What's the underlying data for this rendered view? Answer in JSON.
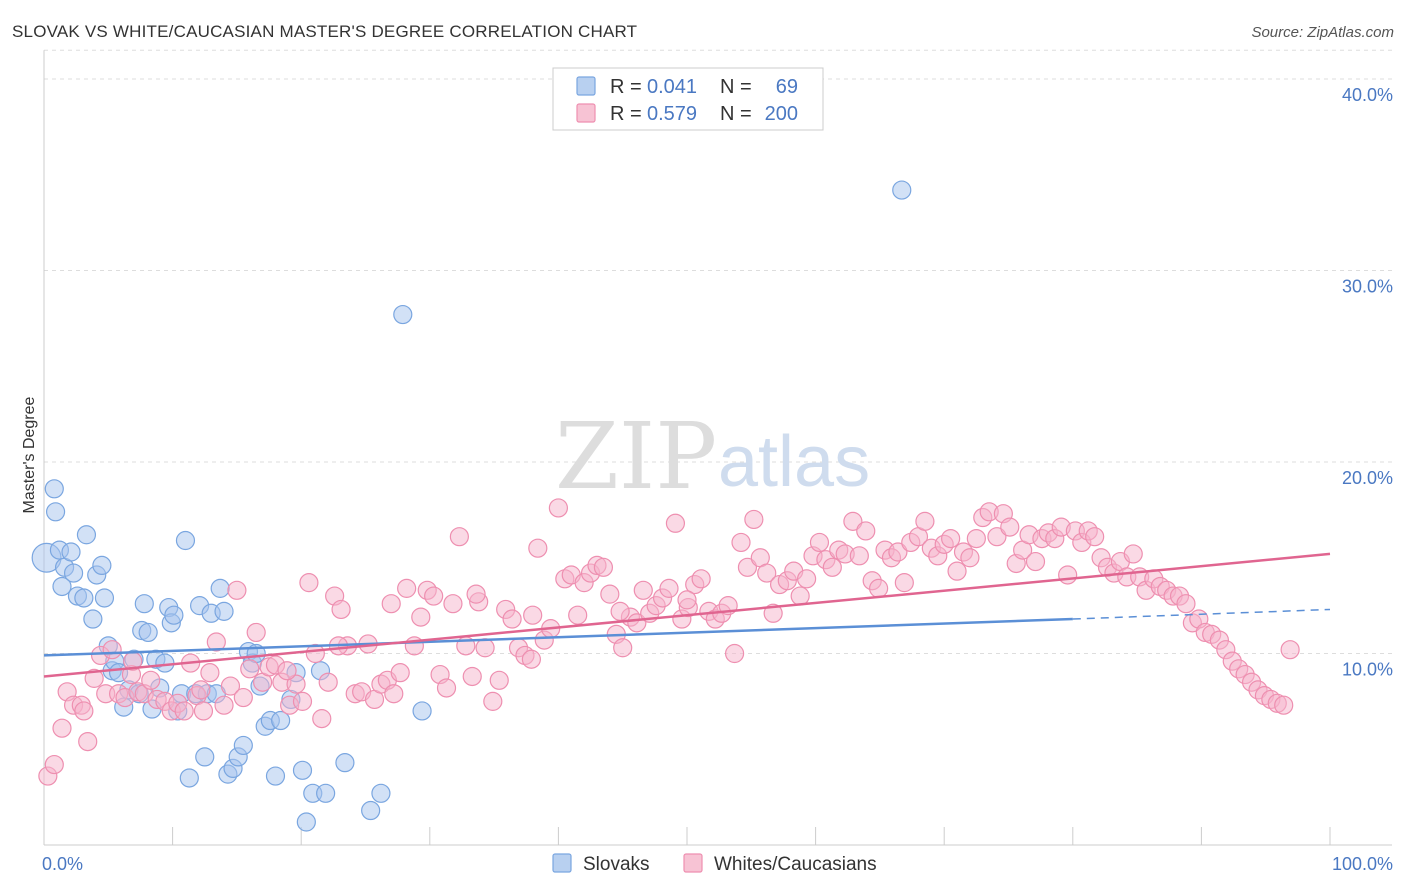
{
  "header": {
    "title": "SLOVAK VS WHITE/CAUCASIAN MASTER'S DEGREE CORRELATION CHART",
    "source": "Source: ZipAtlas.com"
  },
  "watermark": {
    "zip": "ZIP",
    "atlas": "atlas"
  },
  "legend": {
    "rows": [
      {
        "r_label": "R =",
        "r_value": "0.041",
        "n_label": "N =",
        "n_value": "69",
        "color": "#7aa6e0",
        "fill": "#b8d0f0"
      },
      {
        "r_label": "R =",
        "r_value": "0.579",
        "n_label": "N =",
        "n_value": "200",
        "color": "#ee8fb0",
        "fill": "#f7c3d4"
      }
    ]
  },
  "bottom_legend": [
    {
      "label": "Slovaks",
      "color": "#7aa6e0",
      "fill": "#b8d0f0"
    },
    {
      "label": "Whites/Caucasians",
      "color": "#ee8fb0",
      "fill": "#f7c3d4"
    }
  ],
  "chart_data": {
    "type": "scatter",
    "title": "SLOVAK VS WHITE/CAUCASIAN MASTER'S DEGREE CORRELATION CHART",
    "xlabel": "",
    "ylabel": "Master's Degree",
    "xlim": [
      0,
      100
    ],
    "ylim": [
      0,
      41.5
    ],
    "x_tick_labels": [
      "0.0%",
      "100.0%"
    ],
    "y_ticks": [
      10,
      20,
      30,
      40
    ],
    "y_tick_labels": [
      "10.0%",
      "20.0%",
      "30.0%",
      "40.0%"
    ],
    "grid": true,
    "legend_position": "top-center",
    "series": [
      {
        "name": "Slovaks",
        "color": "#5b8fd6",
        "trend": {
          "x": [
            0,
            80
          ],
          "y": [
            9.9,
            11.8
          ],
          "dashed_to": [
            100,
            12.3
          ]
        },
        "points": [
          [
            0.2,
            15.0,
            1.6
          ],
          [
            0.8,
            18.6,
            1
          ],
          [
            0.9,
            17.4,
            1
          ],
          [
            1.2,
            15.4,
            1
          ],
          [
            1.4,
            13.5,
            1
          ],
          [
            1.6,
            14.5,
            1
          ],
          [
            2.1,
            15.3,
            1
          ],
          [
            2.3,
            14.2,
            1
          ],
          [
            2.6,
            13.0,
            1
          ],
          [
            3.1,
            12.9,
            1
          ],
          [
            3.3,
            16.2,
            1
          ],
          [
            3.8,
            11.8,
            1
          ],
          [
            4.1,
            14.1,
            1
          ],
          [
            4.5,
            14.6,
            1
          ],
          [
            4.7,
            12.9,
            1
          ],
          [
            5.0,
            10.4,
            1
          ],
          [
            5.3,
            9.1,
            1
          ],
          [
            5.5,
            9.6,
            1
          ],
          [
            5.8,
            9.0,
            1
          ],
          [
            6.2,
            7.2,
            1
          ],
          [
            6.6,
            8.1,
            1
          ],
          [
            7.0,
            9.7,
            1
          ],
          [
            7.4,
            7.9,
            1
          ],
          [
            7.6,
            11.2,
            1
          ],
          [
            7.8,
            12.6,
            1
          ],
          [
            8.1,
            11.1,
            1
          ],
          [
            8.4,
            7.1,
            1
          ],
          [
            8.7,
            9.7,
            1
          ],
          [
            9.0,
            8.2,
            1
          ],
          [
            9.4,
            9.5,
            1
          ],
          [
            9.7,
            12.4,
            1
          ],
          [
            9.9,
            11.6,
            1
          ],
          [
            10.1,
            12.0,
            1
          ],
          [
            10.4,
            7.0,
            1
          ],
          [
            10.7,
            7.9,
            1
          ],
          [
            11.0,
            15.9,
            1
          ],
          [
            11.3,
            3.5,
            1
          ],
          [
            11.8,
            7.9,
            1
          ],
          [
            12.1,
            12.5,
            1
          ],
          [
            12.5,
            4.6,
            1
          ],
          [
            12.7,
            7.9,
            1
          ],
          [
            13.0,
            12.1,
            1
          ],
          [
            13.4,
            7.9,
            1
          ],
          [
            13.7,
            13.4,
            1
          ],
          [
            14.0,
            12.2,
            1
          ],
          [
            14.3,
            3.7,
            1
          ],
          [
            14.7,
            4.0,
            1
          ],
          [
            15.1,
            4.6,
            1
          ],
          [
            15.5,
            5.2,
            1
          ],
          [
            15.9,
            10.1,
            1
          ],
          [
            16.2,
            9.5,
            1
          ],
          [
            16.5,
            10.0,
            1
          ],
          [
            16.8,
            8.3,
            1
          ],
          [
            17.2,
            6.2,
            1
          ],
          [
            17.6,
            6.5,
            1
          ],
          [
            18.0,
            3.6,
            1
          ],
          [
            18.4,
            6.5,
            1
          ],
          [
            19.2,
            7.6,
            1
          ],
          [
            19.6,
            9.0,
            1
          ],
          [
            20.1,
            3.9,
            1
          ],
          [
            20.4,
            1.2,
            1
          ],
          [
            20.9,
            2.7,
            1
          ],
          [
            21.5,
            9.1,
            1
          ],
          [
            21.9,
            2.7,
            1
          ],
          [
            23.4,
            4.3,
            1
          ],
          [
            25.4,
            1.8,
            1
          ],
          [
            26.2,
            2.7,
            1
          ],
          [
            27.9,
            27.7,
            1
          ],
          [
            29.4,
            7.0,
            1
          ],
          [
            66.7,
            34.2,
            1
          ]
        ]
      },
      {
        "name": "Whites/Caucasians",
        "color": "#e06590",
        "trend": {
          "x": [
            0,
            100
          ],
          "y": [
            8.8,
            15.2
          ]
        },
        "points": [
          [
            0.3,
            3.6
          ],
          [
            0.8,
            4.2
          ],
          [
            1.4,
            6.1
          ],
          [
            1.8,
            8.0
          ],
          [
            2.3,
            7.3
          ],
          [
            2.9,
            7.3
          ],
          [
            3.4,
            5.4
          ],
          [
            3.9,
            8.7
          ],
          [
            4.4,
            9.9
          ],
          [
            4.8,
            7.9
          ],
          [
            5.3,
            10.2
          ],
          [
            5.8,
            7.9
          ],
          [
            6.3,
            7.7
          ],
          [
            6.8,
            8.9
          ],
          [
            7.3,
            8.0
          ],
          [
            7.8,
            7.9
          ],
          [
            8.3,
            8.6
          ],
          [
            8.8,
            7.6
          ],
          [
            9.4,
            7.5
          ],
          [
            9.9,
            7.0
          ],
          [
            10.4,
            7.4
          ],
          [
            10.9,
            7.0
          ],
          [
            11.4,
            9.5
          ],
          [
            11.9,
            7.8
          ],
          [
            12.4,
            7.0
          ],
          [
            12.9,
            9.0
          ],
          [
            13.4,
            10.6
          ],
          [
            14.0,
            7.3
          ],
          [
            14.5,
            8.3
          ],
          [
            15.0,
            13.3
          ],
          [
            15.5,
            7.7
          ],
          [
            16.0,
            9.2
          ],
          [
            16.5,
            11.1
          ],
          [
            17.0,
            8.5
          ],
          [
            17.5,
            9.3
          ],
          [
            18.0,
            9.4
          ],
          [
            18.5,
            8.5
          ],
          [
            19.1,
            7.3
          ],
          [
            19.6,
            8.4
          ],
          [
            20.1,
            7.5
          ],
          [
            20.6,
            13.7
          ],
          [
            21.1,
            10.0
          ],
          [
            21.6,
            6.6
          ],
          [
            22.1,
            8.5
          ],
          [
            22.6,
            13.0
          ],
          [
            23.1,
            12.3
          ],
          [
            23.6,
            10.4
          ],
          [
            24.2,
            7.9
          ],
          [
            24.7,
            8.0
          ],
          [
            25.2,
            10.5
          ],
          [
            25.7,
            7.6
          ],
          [
            26.2,
            8.4
          ],
          [
            26.7,
            8.6
          ],
          [
            27.2,
            7.9
          ],
          [
            27.7,
            9.0
          ],
          [
            28.2,
            13.4
          ],
          [
            28.8,
            10.4
          ],
          [
            29.3,
            11.9
          ],
          [
            29.8,
            13.3
          ],
          [
            30.3,
            13.0
          ],
          [
            30.8,
            8.9
          ],
          [
            31.3,
            8.2
          ],
          [
            31.8,
            12.6
          ],
          [
            32.3,
            16.1
          ],
          [
            32.8,
            10.4
          ],
          [
            33.3,
            8.8
          ],
          [
            33.8,
            12.7
          ],
          [
            34.3,
            10.3
          ],
          [
            34.9,
            7.5
          ],
          [
            35.4,
            8.6
          ],
          [
            35.9,
            12.3
          ],
          [
            36.4,
            11.8
          ],
          [
            36.9,
            10.3
          ],
          [
            37.4,
            9.9
          ],
          [
            37.9,
            9.7
          ],
          [
            38.4,
            15.5
          ],
          [
            38.9,
            10.7
          ],
          [
            39.4,
            11.3
          ],
          [
            40.0,
            17.6
          ],
          [
            40.5,
            13.9
          ],
          [
            41.0,
            14.1
          ],
          [
            41.5,
            12.0
          ],
          [
            42.0,
            13.7
          ],
          [
            42.5,
            14.2
          ],
          [
            43.0,
            14.6
          ],
          [
            43.5,
            14.5
          ],
          [
            44.0,
            13.1
          ],
          [
            44.5,
            11.0
          ],
          [
            45.0,
            10.3
          ],
          [
            45.6,
            11.9
          ],
          [
            46.1,
            11.6
          ],
          [
            46.6,
            13.3
          ],
          [
            47.1,
            12.1
          ],
          [
            47.6,
            12.5
          ],
          [
            48.1,
            12.9
          ],
          [
            48.6,
            13.4
          ],
          [
            49.1,
            16.8
          ],
          [
            49.6,
            11.8
          ],
          [
            50.1,
            12.4
          ],
          [
            50.6,
            13.6
          ],
          [
            51.1,
            13.9
          ],
          [
            51.7,
            12.2
          ],
          [
            52.2,
            11.8
          ],
          [
            52.7,
            12.1
          ],
          [
            53.2,
            12.5
          ],
          [
            53.7,
            10.0
          ],
          [
            54.2,
            15.8
          ],
          [
            54.7,
            14.5
          ],
          [
            55.2,
            17.0
          ],
          [
            55.7,
            15.0
          ],
          [
            56.2,
            14.2
          ],
          [
            56.7,
            12.1
          ],
          [
            57.2,
            13.6
          ],
          [
            57.8,
            13.8
          ],
          [
            58.3,
            14.3
          ],
          [
            58.8,
            13.0
          ],
          [
            59.3,
            13.9
          ],
          [
            59.8,
            15.1
          ],
          [
            60.3,
            15.8
          ],
          [
            60.8,
            14.9
          ],
          [
            61.3,
            14.5
          ],
          [
            61.8,
            15.4
          ],
          [
            62.3,
            15.2
          ],
          [
            62.9,
            16.9
          ],
          [
            63.4,
            15.1
          ],
          [
            63.9,
            16.4
          ],
          [
            64.4,
            13.8
          ],
          [
            64.9,
            13.4
          ],
          [
            65.4,
            15.4
          ],
          [
            65.9,
            15.0
          ],
          [
            66.4,
            15.3
          ],
          [
            66.9,
            13.7
          ],
          [
            67.4,
            15.8
          ],
          [
            68.0,
            16.1
          ],
          [
            68.5,
            16.9
          ],
          [
            69.0,
            15.5
          ],
          [
            69.5,
            15.1
          ],
          [
            70.0,
            15.7
          ],
          [
            70.5,
            16.0
          ],
          [
            71.0,
            14.3
          ],
          [
            71.5,
            15.3
          ],
          [
            72.0,
            15.0
          ],
          [
            72.5,
            16.0
          ],
          [
            73.0,
            17.1
          ],
          [
            73.5,
            17.4
          ],
          [
            74.1,
            16.1
          ],
          [
            74.6,
            17.3
          ],
          [
            75.1,
            16.6
          ],
          [
            75.6,
            14.7
          ],
          [
            76.1,
            15.4
          ],
          [
            76.6,
            16.2
          ],
          [
            77.1,
            14.8
          ],
          [
            77.6,
            16.0
          ],
          [
            78.1,
            16.3
          ],
          [
            78.6,
            16.0
          ],
          [
            79.1,
            16.6
          ],
          [
            79.6,
            14.1
          ],
          [
            80.2,
            16.4
          ],
          [
            80.7,
            15.8
          ],
          [
            81.2,
            16.4
          ],
          [
            81.7,
            16.1
          ],
          [
            82.2,
            15.0
          ],
          [
            82.7,
            14.5
          ],
          [
            83.2,
            14.2
          ],
          [
            83.7,
            14.8
          ],
          [
            84.2,
            14.0
          ],
          [
            84.7,
            15.2
          ],
          [
            85.2,
            14.0
          ],
          [
            85.7,
            13.3
          ],
          [
            86.3,
            13.9
          ],
          [
            86.8,
            13.5
          ],
          [
            87.3,
            13.3
          ],
          [
            87.8,
            13.0
          ],
          [
            88.3,
            13.0
          ],
          [
            88.8,
            12.6
          ],
          [
            89.3,
            11.6
          ],
          [
            89.8,
            11.8
          ],
          [
            90.3,
            11.1
          ],
          [
            90.8,
            11.0
          ],
          [
            91.4,
            10.7
          ],
          [
            91.9,
            10.2
          ],
          [
            92.4,
            9.6
          ],
          [
            92.9,
            9.2
          ],
          [
            93.4,
            8.9
          ],
          [
            93.9,
            8.5
          ],
          [
            94.4,
            8.1
          ],
          [
            94.9,
            7.8
          ],
          [
            95.4,
            7.6
          ],
          [
            95.9,
            7.4
          ],
          [
            96.4,
            7.3
          ],
          [
            96.9,
            10.2
          ],
          [
            50.0,
            12.8
          ],
          [
            44.8,
            12.2
          ],
          [
            38.0,
            12.0
          ],
          [
            33.6,
            13.1
          ],
          [
            27.0,
            12.6
          ],
          [
            22.9,
            10.4
          ],
          [
            18.9,
            9.1
          ],
          [
            12.2,
            8.1
          ],
          [
            6.9,
            9.6
          ],
          [
            3.1,
            7.0
          ]
        ]
      }
    ]
  }
}
